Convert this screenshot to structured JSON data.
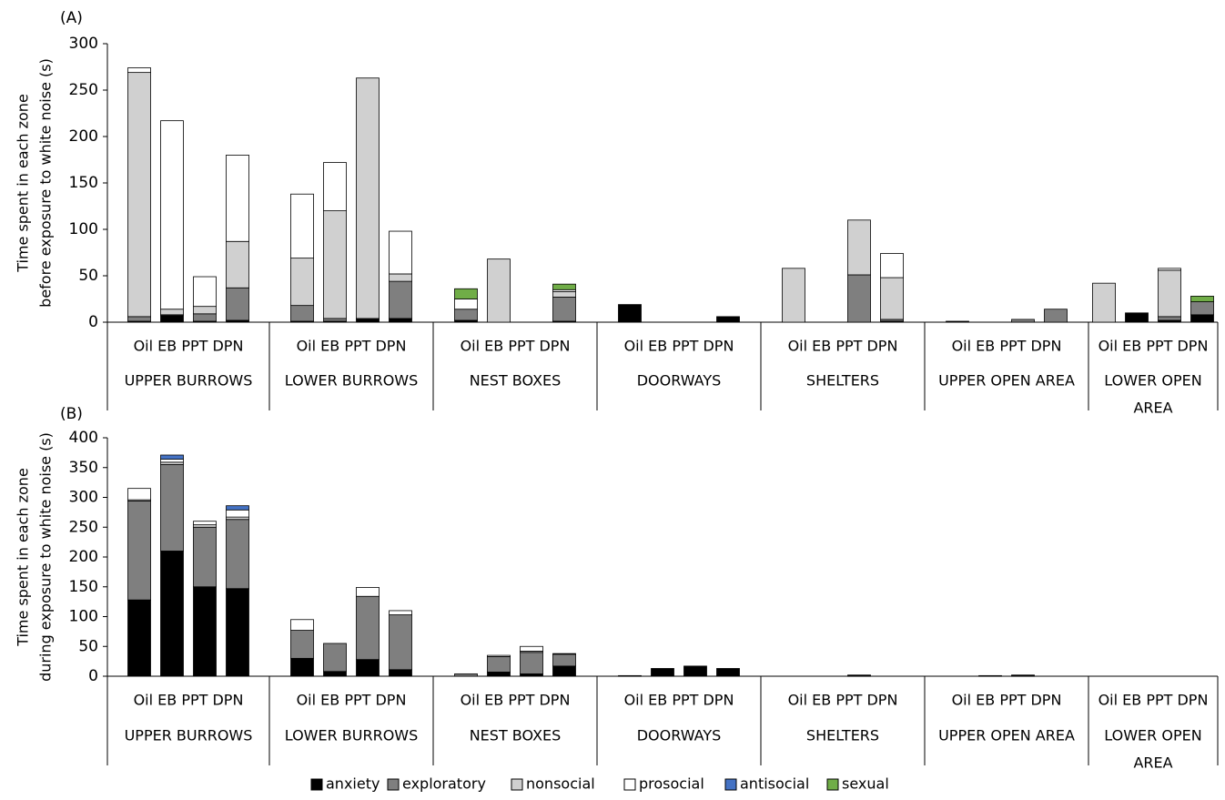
{
  "legend": {
    "items": [
      {
        "key": "anxiety",
        "label": "anxiety",
        "color": "#000000"
      },
      {
        "key": "exploratory",
        "label": "exploratory",
        "color": "#7f7f7f"
      },
      {
        "key": "nonsocial",
        "label": "nonsocial",
        "color": "#d0d0d0"
      },
      {
        "key": "prosocial",
        "label": "prosocial",
        "color": "#ffffff"
      },
      {
        "key": "antisocial",
        "label": "antisocial",
        "color": "#4472c4"
      },
      {
        "key": "sexual",
        "label": "sexual",
        "color": "#70ad47"
      }
    ],
    "placement": "bottom"
  },
  "chart_data": [
    {
      "type": "bar",
      "stacked": true,
      "panel_label": "(A)",
      "ylabel_lines": [
        "Time spent in each zone",
        "before exposure to white noise (s)"
      ],
      "ylim": [
        0,
        300
      ],
      "yticks": [
        0,
        50,
        100,
        150,
        200,
        250,
        300
      ],
      "grid": false,
      "groups": [
        "UPPER BURROWS",
        "LOWER BURROWS",
        "NEST BOXES",
        "DOORWAYS",
        "SHELTERS",
        "UPPER OPEN AREA",
        "LOWER OPEN AREA"
      ],
      "treatments": [
        "Oil",
        "EB",
        "PPT",
        "DPN"
      ],
      "series": [
        {
          "key": "anxiety",
          "name": "anxiety",
          "values": [
            [
              1,
              7,
              1,
              2
            ],
            [
              1,
              1,
              3,
              4
            ],
            [
              2,
              0,
              0,
              1
            ],
            [
              19,
              0,
              0,
              6
            ],
            [
              0,
              0,
              0,
              1
            ],
            [
              1,
              0,
              0,
              0
            ],
            [
              0,
              10,
              2,
              8
            ]
          ]
        },
        {
          "key": "exploratory",
          "name": "exploratory",
          "values": [
            [
              5,
              1,
              8,
              35
            ],
            [
              17,
              3,
              1,
              40
            ],
            [
              12,
              0,
              0,
              26
            ],
            [
              0,
              0,
              0,
              0
            ],
            [
              0,
              0,
              51,
              2
            ],
            [
              0,
              0,
              3,
              14
            ],
            [
              0,
              0,
              4,
              14
            ]
          ]
        },
        {
          "key": "nonsocial",
          "name": "nonsocial",
          "values": [
            [
              263,
              6,
              8,
              50
            ],
            [
              51,
              116,
              259,
              8
            ],
            [
              0,
              68,
              0,
              6
            ],
            [
              0,
              0,
              0,
              0
            ],
            [
              58,
              0,
              59,
              45
            ],
            [
              0,
              0,
              0,
              0
            ],
            [
              42,
              0,
              50,
              0
            ]
          ]
        },
        {
          "key": "prosocial",
          "name": "prosocial",
          "values": [
            [
              5,
              203,
              32,
              93
            ],
            [
              69,
              52,
              0,
              46
            ],
            [
              11,
              0,
              0,
              2
            ],
            [
              0,
              0,
              0,
              0
            ],
            [
              0,
              0,
              0,
              26
            ],
            [
              0,
              0,
              0,
              0
            ],
            [
              0,
              0,
              2,
              0
            ]
          ]
        },
        {
          "key": "antisocial",
          "name": "antisocial",
          "values": [
            [
              0,
              0,
              0,
              0
            ],
            [
              0,
              0,
              0,
              0
            ],
            [
              0,
              0,
              0,
              0
            ],
            [
              0,
              0,
              0,
              0
            ],
            [
              0,
              0,
              0,
              0
            ],
            [
              0,
              0,
              0,
              0
            ],
            [
              0,
              0,
              0,
              0
            ]
          ]
        },
        {
          "key": "sexual",
          "name": "sexual",
          "values": [
            [
              0,
              0,
              0,
              0
            ],
            [
              0,
              0,
              0,
              0
            ],
            [
              11,
              0,
              0,
              6
            ],
            [
              0,
              0,
              0,
              0
            ],
            [
              0,
              0,
              0,
              0
            ],
            [
              0,
              0,
              0,
              0
            ],
            [
              0,
              0,
              0,
              6
            ]
          ]
        }
      ]
    },
    {
      "type": "bar",
      "stacked": true,
      "panel_label": "(B)",
      "ylabel_lines": [
        "Time spent in each zone",
        "during exposure to white noise (s)"
      ],
      "ylim": [
        0,
        400
      ],
      "yticks": [
        0,
        50,
        100,
        150,
        200,
        250,
        300,
        350,
        400
      ],
      "grid": false,
      "groups": [
        "UPPER BURROWS",
        "LOWER BURROWS",
        "NEST BOXES",
        "DOORWAYS",
        "SHELTERS",
        "UPPER OPEN AREA",
        "LOWER OPEN AREA"
      ],
      "treatments": [
        "Oil",
        "EB",
        "PPT",
        "DPN"
      ],
      "series": [
        {
          "key": "anxiety",
          "name": "anxiety",
          "values": [
            [
              128,
              210,
              150,
              147
            ],
            [
              30,
              8,
              28,
              11
            ],
            [
              0,
              7,
              4,
              17
            ],
            [
              1,
              13,
              17,
              13
            ],
            [
              0,
              0,
              1,
              0
            ],
            [
              0,
              1,
              1,
              0
            ],
            [
              0,
              0,
              0,
              0
            ]
          ]
        },
        {
          "key": "exploratory",
          "name": "exploratory",
          "values": [
            [
              166,
              145,
              100,
              116
            ],
            [
              47,
              47,
              106,
              92
            ],
            [
              4,
              26,
              36,
              20
            ],
            [
              0,
              0,
              0,
              0
            ],
            [
              0,
              0,
              1,
              0
            ],
            [
              0,
              0,
              1,
              0
            ],
            [
              0,
              0,
              0,
              0
            ]
          ]
        },
        {
          "key": "nonsocial",
          "name": "nonsocial",
          "values": [
            [
              2,
              4,
              4,
              4
            ],
            [
              0,
              0,
              0,
              0
            ],
            [
              0,
              0,
              2,
              0
            ],
            [
              0,
              0,
              0,
              0
            ],
            [
              0,
              0,
              0,
              0
            ],
            [
              0,
              0,
              0,
              0
            ],
            [
              0,
              0,
              0,
              0
            ]
          ]
        },
        {
          "key": "prosocial",
          "name": "prosocial",
          "values": [
            [
              19,
              5,
              6,
              12
            ],
            [
              18,
              0,
              15,
              7
            ],
            [
              0,
              2,
              8,
              1
            ],
            [
              0,
              0,
              0,
              0
            ],
            [
              0,
              0,
              0,
              0
            ],
            [
              0,
              0,
              0,
              0
            ],
            [
              0,
              0,
              0,
              0
            ]
          ]
        },
        {
          "key": "antisocial",
          "name": "antisocial",
          "values": [
            [
              0,
              7,
              0,
              7
            ],
            [
              0,
              0,
              0,
              0
            ],
            [
              0,
              0,
              0,
              0
            ],
            [
              0,
              0,
              0,
              0
            ],
            [
              0,
              0,
              0,
              0
            ],
            [
              0,
              0,
              0,
              0
            ],
            [
              0,
              0,
              0,
              0
            ]
          ]
        },
        {
          "key": "sexual",
          "name": "sexual",
          "values": [
            [
              0,
              0,
              0,
              0
            ],
            [
              0,
              0,
              0,
              0
            ],
            [
              0,
              0,
              0,
              0
            ],
            [
              0,
              0,
              0,
              0
            ],
            [
              0,
              0,
              0,
              0
            ],
            [
              0,
              0,
              0,
              0
            ],
            [
              0,
              0,
              0,
              0
            ]
          ]
        }
      ]
    }
  ]
}
